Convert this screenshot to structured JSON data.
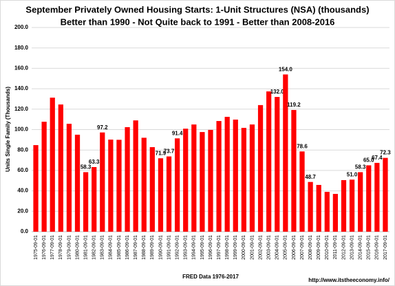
{
  "chart_data": {
    "type": "bar",
    "title": "September Privately Owned Housing Starts: 1-Unit Structures (NSA) (thousands)",
    "subtitle": "Better than 1990 - Not Quite back to 1991 - Better than 2008-2016",
    "y_label": "Units Single Family (Thousands)",
    "x_label": "FRED  Data 1976-2017",
    "source": "http://www.itstheeconomy.info/",
    "color": "#ff0000",
    "categories": [
      "1975-09-01",
      "1976-09-01",
      "1977-09-01",
      "1978-09-01",
      "1979-09-01",
      "1980-09-01",
      "1981-09-01",
      "1982-09-01",
      "1983-09-01",
      "1984-09-01",
      "1985-09-01",
      "1986-09-01",
      "1987-09-01",
      "1988-09-01",
      "1989-09-01",
      "1990-09-01",
      "1991-09-01",
      "1992-09-01",
      "1993-09-01",
      "1994-09-01",
      "1995-09-01",
      "1996-09-01",
      "1997-09-01",
      "1998-09-01",
      "1999-09-01",
      "2000-09-01",
      "2001-09-01",
      "2002-09-01",
      "2003-09-01",
      "2004-09-01",
      "2005-09-01",
      "2006-09-01",
      "2007-09-01",
      "2008-09-01",
      "2009-09-01",
      "2010-09-01",
      "2011-09-01",
      "2012-09-01",
      "2013-09-01",
      "2014-09-01",
      "2015-09-01",
      "2016-09-01",
      "2017-09-01"
    ],
    "values": [
      84.8,
      107.7,
      131.3,
      124.6,
      105.7,
      95,
      58.3,
      63.3,
      97.2,
      90.2,
      90,
      102.4,
      109,
      92,
      82.8,
      71.9,
      73.7,
      91.4,
      100.9,
      105,
      97.6,
      99.7,
      108.4,
      112.5,
      109.8,
      101.7,
      105,
      124,
      137.4,
      132.0,
      154.0,
      119.2,
      78.6,
      48.7,
      45.8,
      39,
      37,
      50.5,
      51.0,
      58.3,
      65.0,
      67.4,
      72.3
    ],
    "value_labels": [
      null,
      null,
      null,
      null,
      null,
      null,
      "58.3",
      "63.3",
      "97.2",
      null,
      null,
      null,
      null,
      null,
      null,
      "71.9",
      "73.7",
      "91.4",
      null,
      null,
      null,
      null,
      null,
      null,
      null,
      null,
      null,
      null,
      null,
      "132.0",
      "154.0",
      "119.2",
      "78.6",
      "48.7",
      null,
      null,
      null,
      null,
      "51.0",
      "58.3",
      "65.0",
      "67.4",
      "72.3"
    ],
    "ylim": [
      0,
      200
    ],
    "yticks": [
      {
        "value": 0,
        "label": "0.0"
      },
      {
        "value": 20,
        "label": "20.0"
      },
      {
        "value": 40,
        "label": "40.0"
      },
      {
        "value": 60,
        "label": "60.0"
      },
      {
        "value": 80,
        "label": "80.0"
      },
      {
        "value": 100,
        "label": "100.0"
      },
      {
        "value": 120,
        "label": "120.0"
      },
      {
        "value": 140,
        "label": "140.0"
      },
      {
        "value": 160,
        "label": "160.0"
      },
      {
        "value": 180,
        "label": "180.0"
      },
      {
        "value": 200,
        "label": "200.0"
      }
    ],
    "grid": true
  }
}
